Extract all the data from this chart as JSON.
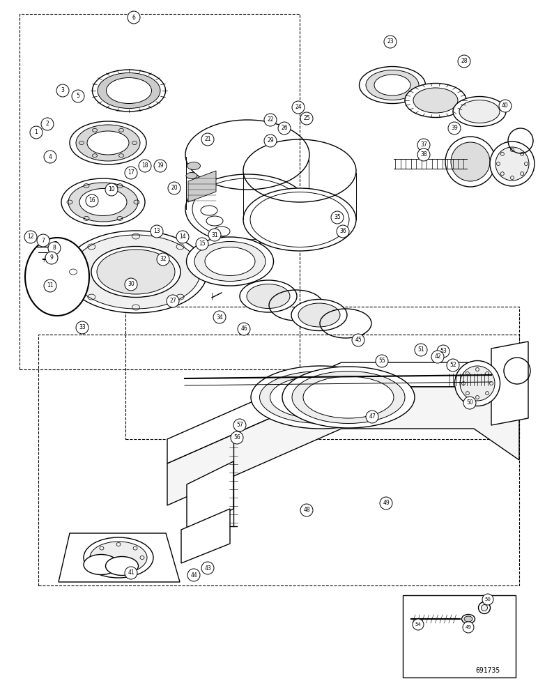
{
  "figure_number": "691735",
  "bg_color": "#ffffff",
  "line_color": "#000000",
  "fig_width": 7.72,
  "fig_height": 10.0,
  "dpi": 100,
  "watermark": "691735",
  "watermark_fontsize": 7
}
